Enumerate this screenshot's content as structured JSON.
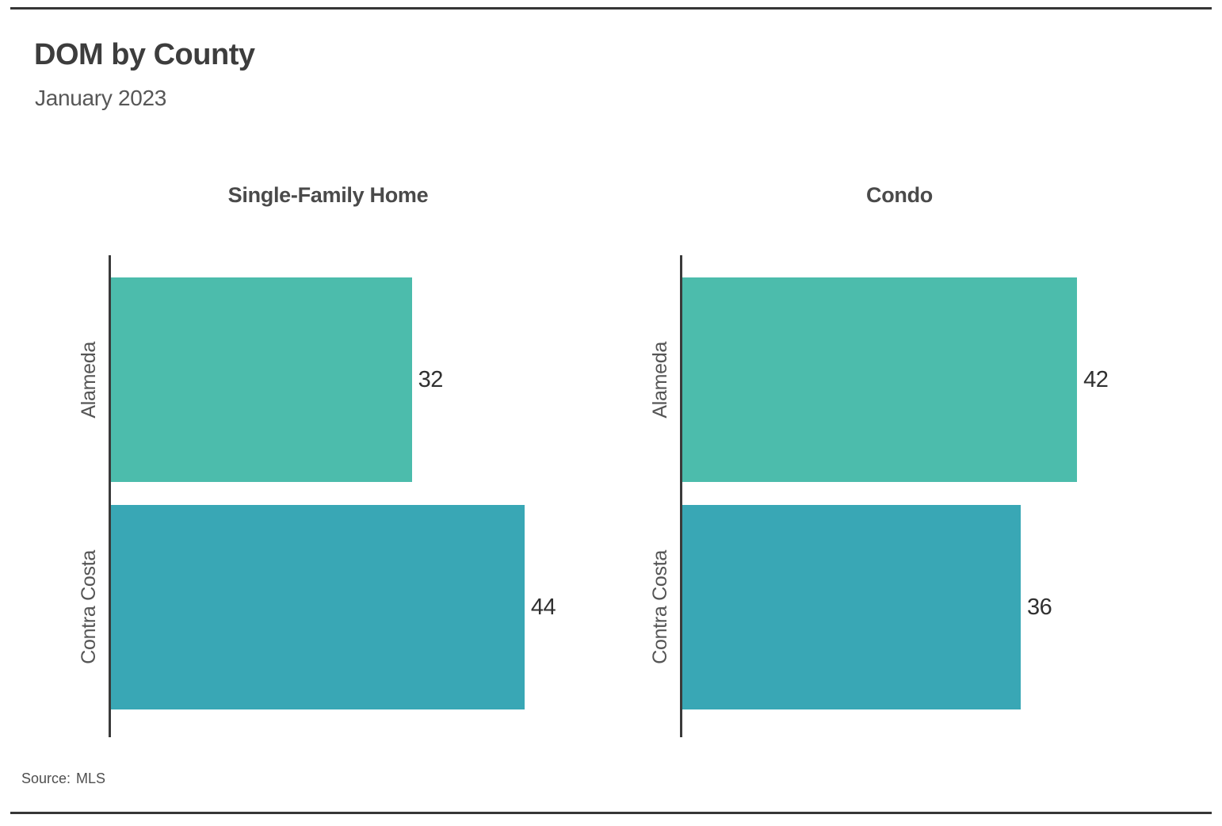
{
  "header": {
    "title": "DOM by County",
    "subtitle": "January 2023"
  },
  "footer": {
    "source_label": "Source:",
    "source_value": "MLS"
  },
  "colors": {
    "alameda_bar": "#4CBCAC",
    "contra_costa_bar": "#39A7B5",
    "axis_line": "#3A3A3A",
    "rule_line": "#363636",
    "title_text": "#3D3D3D",
    "muted_text": "#555555",
    "value_text": "#303030"
  },
  "chart_data": {
    "type": "bar",
    "orientation": "horizontal",
    "title": "DOM by County",
    "subtitle": "January 2023",
    "source": "Source: MLS",
    "categories": [
      "Alameda",
      "Contra Costa"
    ],
    "category_colors": [
      "#4CBCAC",
      "#39A7B5"
    ],
    "panels": [
      {
        "title": "Single-Family Home",
        "values": [
          32,
          44
        ]
      },
      {
        "title": "Condo",
        "values": [
          42,
          36
        ]
      }
    ],
    "xlim": [
      0,
      46.2
    ],
    "grid": false,
    "value_labels": true,
    "legend": "none"
  }
}
